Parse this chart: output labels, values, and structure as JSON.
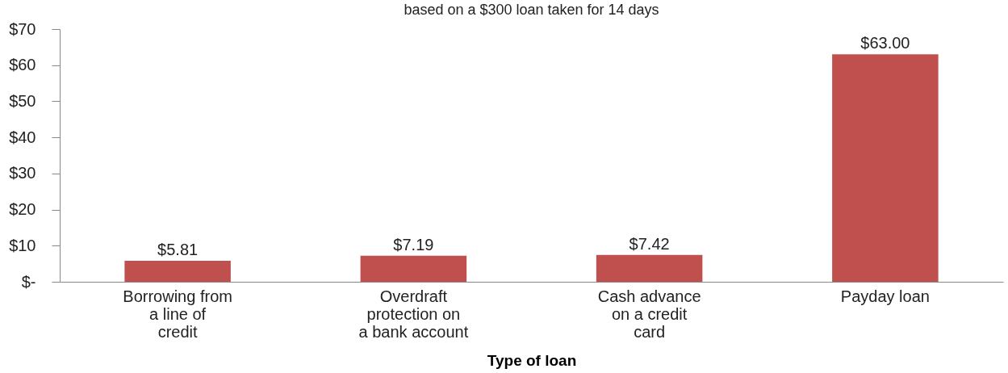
{
  "chart_data": {
    "type": "bar",
    "title": "based on a $300 loan taken for 14 days",
    "categories": [
      "Borrowing from a line of credit",
      "Overdraft protection on a bank account",
      "Cash advance on a credit card",
      "Payday loan"
    ],
    "values": [
      5.81,
      7.19,
      7.42,
      63.0
    ],
    "value_labels": [
      "$5.81",
      "$7.19",
      "$7.42",
      "$63.00"
    ],
    "color": "#c0504d",
    "xlabel": "Type of loan",
    "ylim": [
      0,
      70
    ],
    "yticks": [
      {
        "value": 0,
        "label": "$-"
      },
      {
        "value": 10,
        "label": "$10"
      },
      {
        "value": 20,
        "label": "$20"
      },
      {
        "value": 30,
        "label": "$30"
      },
      {
        "value": 40,
        "label": "$40"
      },
      {
        "value": 50,
        "label": "$50"
      },
      {
        "value": 60,
        "label": "$60"
      },
      {
        "value": 70,
        "label": "$70"
      }
    ],
    "grid": false
  }
}
